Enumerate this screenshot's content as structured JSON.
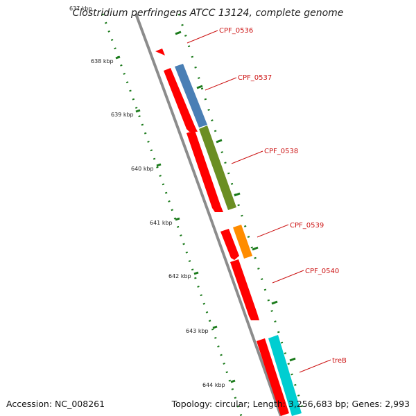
{
  "title": "Clostridium perfringens ATCC 13124, complete genome",
  "footer": {
    "accession": "Accession: NC_008261",
    "summary": "Topology: circular; Length: 3,256,683 bp; Genes: 2,993"
  },
  "ticks": [
    "637 kbp",
    "638 kbp",
    "639 kbp",
    "640 kbp",
    "641 kbp",
    "642 kbp",
    "643 kbp",
    "644 kbp"
  ],
  "genes": [
    {
      "name": "CPF_0536",
      "label_color": "#cc1111"
    },
    {
      "name": "CPF_0537",
      "label_color": "#cc1111"
    },
    {
      "name": "CPF_0538",
      "label_color": "#cc1111"
    },
    {
      "name": "CPF_0539",
      "label_color": "#cc1111"
    },
    {
      "name": "CPF_0540",
      "label_color": "#cc1111"
    },
    {
      "name": "treB",
      "label_color": "#cc1111"
    }
  ],
  "colors": {
    "backbone": "#8c8c8c",
    "cds": "#ff0000",
    "cog_blue": "#4a7fb5",
    "cog_green": "#6b8e23",
    "cog_orange": "#ff8c00",
    "cog_cyan": "#00ced1",
    "tick": "#1a7a1a"
  }
}
